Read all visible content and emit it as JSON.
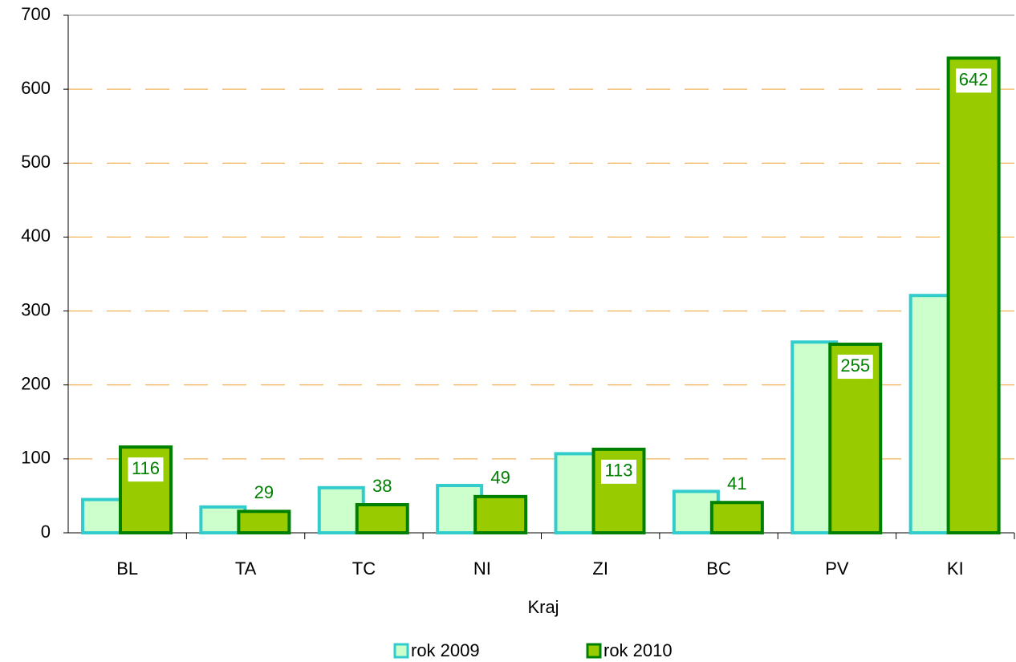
{
  "chart_data": {
    "type": "bar",
    "x_label": "Kraj",
    "categories": [
      "BL",
      "TA",
      "TC",
      "NI",
      "ZI",
      "BC",
      "PV",
      "KI"
    ],
    "series": [
      {
        "name": "rok 2009",
        "color": "#ccffcc",
        "edge_color": "#33cccc",
        "values": [
          45,
          35,
          61,
          64,
          107,
          56,
          258,
          321
        ]
      },
      {
        "name": "rok 2010",
        "color": "#99cc00",
        "edge_color": "#008000",
        "values": [
          116,
          29,
          38,
          49,
          113,
          41,
          255,
          642
        ],
        "show_labels": true
      }
    ],
    "ylim": [
      0,
      700
    ],
    "yticks": [
      0,
      100,
      200,
      300,
      400,
      500,
      600,
      700
    ],
    "grid": true,
    "legend": "bottom"
  }
}
